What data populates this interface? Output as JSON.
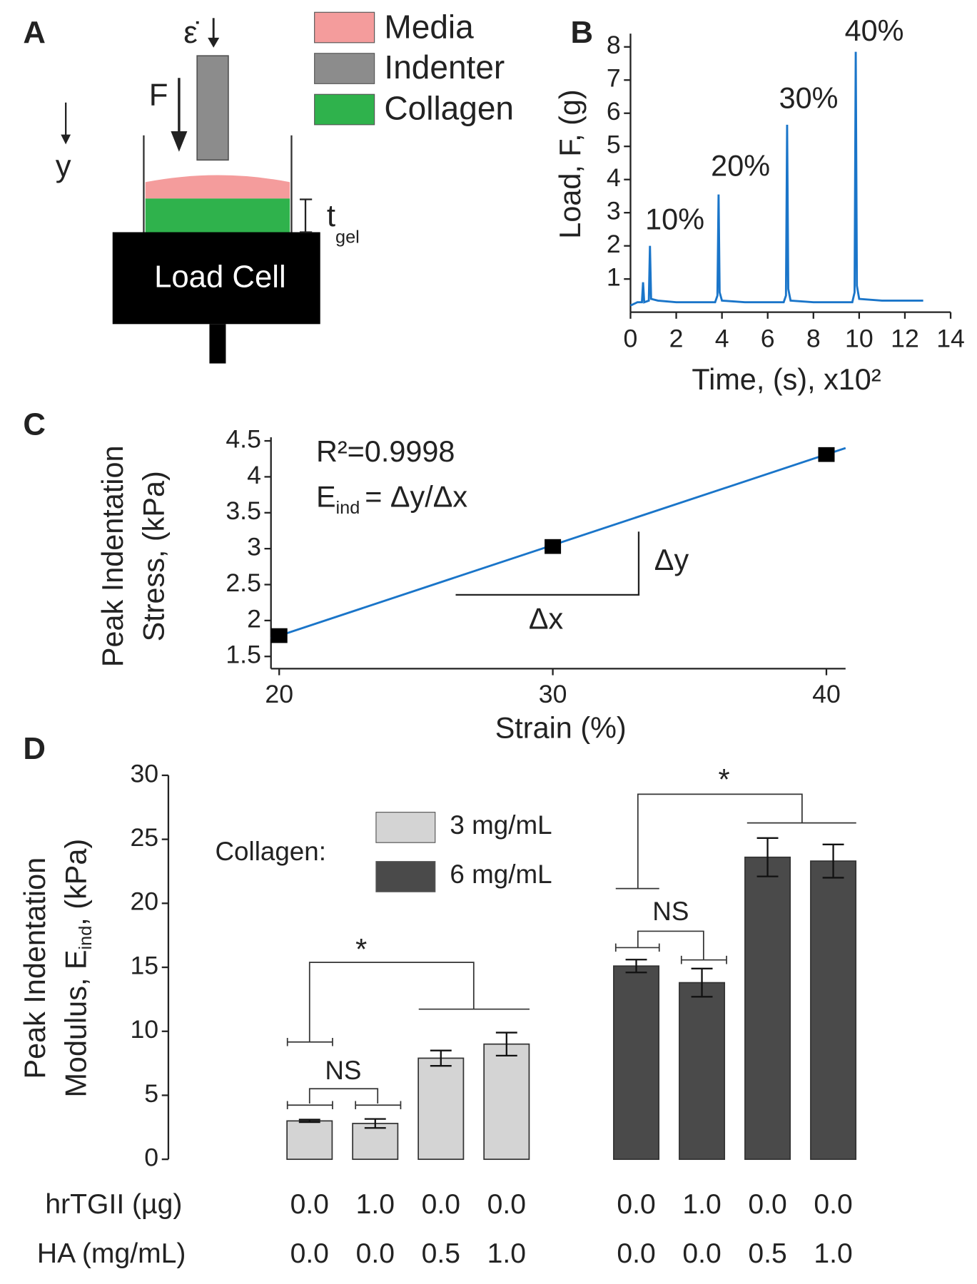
{
  "panel_labels": [
    "A",
    "B",
    "C",
    "D"
  ],
  "diagram": {
    "strain_rate": "ε̇",
    "force": "F",
    "direction": "y",
    "legend": [
      {
        "name": "Media",
        "color": "#f49c9c"
      },
      {
        "name": "Indenter",
        "color": "#8c8c8c"
      },
      {
        "name": "Collagen",
        "color": "#2fb24c"
      }
    ],
    "thickness": "t",
    "thickness_subscript": "gel",
    "load_cell": "Load Cell"
  },
  "chart_data": [
    {
      "type": "line",
      "ylabel": "Load, F, (g)",
      "xlabel": "Time, (s), x10²",
      "color": "#1a75c9",
      "x": [
        0,
        0.3,
        0.5,
        0.55,
        0.6,
        0.8,
        0.85,
        0.9,
        1.2,
        2,
        3,
        3.7,
        3.8,
        3.85,
        3.9,
        4.0,
        5,
        6,
        6.7,
        6.8,
        6.85,
        6.9,
        7.0,
        8,
        9,
        9.7,
        9.8,
        9.85,
        9.9,
        10.0,
        11,
        12,
        12.8
      ],
      "values": [
        0.2,
        0.3,
        0.3,
        0.9,
        0.3,
        0.35,
        2.0,
        0.4,
        0.35,
        0.3,
        0.3,
        0.3,
        0.5,
        3.55,
        0.6,
        0.35,
        0.3,
        0.3,
        0.3,
        0.5,
        5.65,
        0.7,
        0.35,
        0.3,
        0.3,
        0.3,
        0.6,
        7.85,
        0.8,
        0.4,
        0.35,
        0.35,
        0.35
      ],
      "annotations": [
        "10%",
        "20%",
        "30%",
        "40%"
      ],
      "xlim": [
        0,
        14
      ],
      "xticks": [
        0,
        2,
        4,
        6,
        8,
        10,
        12,
        14
      ],
      "ylim": [
        0,
        8.4
      ],
      "yticks": [
        1,
        2,
        3,
        4,
        5,
        6,
        7,
        8
      ]
    },
    {
      "type": "scatter",
      "ylabel": [
        "Peak Indentation",
        "Stress, (kPa)"
      ],
      "xlabel": "Strain (%)",
      "color": "#000000",
      "x": [
        20,
        30,
        40
      ],
      "values": [
        1.79,
        3.03,
        4.31
      ],
      "fit": {
        "x": [
          19.7,
          40.7
        ],
        "values": [
          1.75,
          4.4
        ],
        "color": "#1a75c9"
      },
      "annotations": {
        "r_squared": "R²=0.9998",
        "modulus": "E",
        "modulus_subscript": "ind",
        "modulus_formula": "= Δy/Δx",
        "dx": "Δx",
        "dy": "Δy"
      },
      "xlim": [
        19.7,
        40.7
      ],
      "xticks": [
        20,
        30,
        40
      ],
      "ylim": [
        1.33,
        4.55
      ],
      "yticks": [
        1.5,
        2,
        2.5,
        3,
        3.5,
        4,
        4.5
      ]
    },
    {
      "type": "bar",
      "ylabel": "Peak Indentation",
      "ylabel2": {
        "text": "Modulus, E",
        "subscript": "ind",
        "suffix": ", (kPa)"
      },
      "legend_title": "Collagen:",
      "series": [
        {
          "name": "3 mg/mL",
          "color": "#d4d4d4",
          "values": [
            3.0,
            2.8,
            7.9,
            9.0,
            null,
            null,
            null,
            null
          ],
          "errors": [
            0.1,
            0.35,
            0.6,
            0.9,
            null,
            null,
            null,
            null
          ]
        },
        {
          "name": "6 mg/mL",
          "color": "#4a4a4a",
          "values": [
            null,
            null,
            null,
            null,
            15.1,
            13.8,
            23.6,
            23.3
          ],
          "errors": [
            null,
            null,
            null,
            null,
            0.5,
            1.1,
            1.5,
            1.3
          ]
        }
      ],
      "category_rows": [
        {
          "name": "hrTGII (µg)",
          "labels": [
            "0.0",
            "1.0",
            "0.0",
            "0.0",
            "0.0",
            "1.0",
            "0.0",
            "0.0"
          ]
        },
        {
          "name": "HA (mg/mL)",
          "labels": [
            "0.0",
            "0.0",
            "0.5",
            "1.0",
            "0.0",
            "0.0",
            "0.5",
            "1.0"
          ]
        }
      ],
      "significance": [
        "NS",
        "*",
        "NS",
        "*"
      ],
      "ylim": [
        0,
        30
      ],
      "yticks": [
        0,
        5,
        10,
        15,
        20,
        25,
        30
      ]
    }
  ]
}
